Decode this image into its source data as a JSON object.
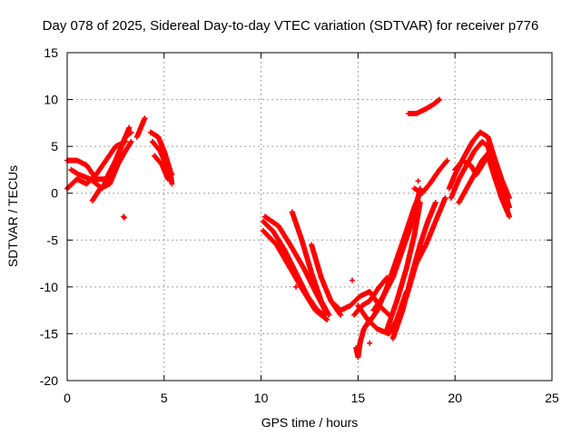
{
  "chart_data": {
    "type": "scatter",
    "title": "Day 078 of 2025, Sidereal Day-to-day VTEC variation (SDTVAR) for receiver p776",
    "xlabel": "GPS time / hours",
    "ylabel": "SDTVAR / TECUs",
    "xlim": [
      0,
      25
    ],
    "ylim": [
      -20,
      15
    ],
    "xticks": [
      0,
      5,
      10,
      15,
      20,
      25
    ],
    "yticks": [
      -20,
      -15,
      -10,
      -5,
      0,
      5,
      10,
      15
    ],
    "grid": true,
    "marker": "+",
    "color": "#ff0000",
    "series": [
      {
        "name": "SDTVAR",
        "traces": [
          [
            [
              0.0,
              0.5
            ],
            [
              0.5,
              1.5
            ],
            [
              1.0,
              1.0
            ],
            [
              1.5,
              2.0
            ],
            [
              2.0,
              3.5
            ],
            [
              2.5,
              5.0
            ],
            [
              3.0,
              5.5
            ]
          ],
          [
            [
              0.0,
              3.5
            ],
            [
              0.5,
              3.5
            ],
            [
              1.0,
              3.0
            ],
            [
              1.5,
              1.5
            ],
            [
              2.0,
              1.5
            ],
            [
              2.5,
              3.5
            ],
            [
              3.0,
              6.0
            ],
            [
              3.3,
              6.5
            ]
          ],
          [
            [
              0.2,
              2.5
            ],
            [
              0.6,
              2.0
            ],
            [
              1.2,
              1.5
            ],
            [
              1.8,
              0.5
            ],
            [
              2.3,
              2.5
            ],
            [
              2.8,
              5.0
            ],
            [
              3.2,
              7.0
            ]
          ],
          [
            [
              1.3,
              -0.8
            ],
            [
              1.7,
              0.5
            ],
            [
              2.2,
              1.0
            ],
            [
              2.6,
              3.0
            ],
            [
              3.0,
              4.5
            ],
            [
              3.3,
              5.5
            ]
          ],
          [
            [
              3.6,
              6.0
            ],
            [
              3.8,
              7.0
            ],
            [
              4.0,
              8.0
            ]
          ],
          [
            [
              4.3,
              6.5
            ],
            [
              4.7,
              6.0
            ],
            [
              5.0,
              4.5
            ],
            [
              5.3,
              2.5
            ],
            [
              5.4,
              1.0
            ]
          ],
          [
            [
              4.4,
              5.5
            ],
            [
              4.8,
              4.5
            ],
            [
              5.1,
              3.0
            ],
            [
              5.4,
              2.0
            ]
          ],
          [
            [
              4.5,
              4.0
            ],
            [
              4.9,
              3.0
            ],
            [
              5.2,
              1.5
            ]
          ],
          [
            [
              10.1,
              -3.0
            ],
            [
              10.6,
              -4.0
            ],
            [
              11.2,
              -6.0
            ],
            [
              11.8,
              -8.5
            ],
            [
              12.4,
              -11.0
            ],
            [
              12.9,
              -12.5
            ],
            [
              13.3,
              -13.0
            ]
          ],
          [
            [
              10.1,
              -4.0
            ],
            [
              10.8,
              -5.5
            ],
            [
              11.5,
              -8.0
            ],
            [
              12.2,
              -10.5
            ],
            [
              12.8,
              -12.5
            ],
            [
              13.4,
              -13.5
            ]
          ],
          [
            [
              10.2,
              -2.5
            ],
            [
              10.9,
              -3.5
            ],
            [
              11.5,
              -5.5
            ],
            [
              12.2,
              -8.0
            ],
            [
              12.8,
              -10.5
            ],
            [
              13.3,
              -12.5
            ]
          ],
          [
            [
              11.6,
              -2.0
            ],
            [
              12.1,
              -5.0
            ],
            [
              12.6,
              -8.5
            ],
            [
              13.1,
              -11.5
            ],
            [
              13.5,
              -13.0
            ]
          ],
          [
            [
              12.6,
              -5.5
            ],
            [
              13.1,
              -9.0
            ],
            [
              13.6,
              -11.5
            ],
            [
              14.1,
              -13.0
            ]
          ],
          [
            [
              13.6,
              -11.5
            ],
            [
              14.1,
              -12.5
            ],
            [
              14.6,
              -12.0
            ],
            [
              15.1,
              -11.0
            ],
            [
              15.6,
              -10.5
            ],
            [
              16.1,
              -12.0
            ],
            [
              16.6,
              -13.0
            ]
          ],
          [
            [
              14.8,
              -13.0
            ],
            [
              15.2,
              -12.0
            ],
            [
              15.6,
              -11.5
            ],
            [
              16.1,
              -10.0
            ],
            [
              16.5,
              -9.0
            ]
          ],
          [
            [
              14.9,
              -16.5
            ],
            [
              15.0,
              -17.5
            ],
            [
              15.1,
              -16.0
            ],
            [
              15.3,
              -14.5
            ],
            [
              15.6,
              -13.5
            ]
          ],
          [
            [
              15.0,
              -12.0
            ],
            [
              15.5,
              -13.5
            ],
            [
              16.0,
              -14.5
            ],
            [
              16.6,
              -15.0
            ],
            [
              17.0,
              -13.5
            ],
            [
              17.5,
              -10.5
            ]
          ],
          [
            [
              15.5,
              -14.0
            ],
            [
              16.0,
              -12.5
            ],
            [
              16.5,
              -10.0
            ],
            [
              17.0,
              -7.0
            ],
            [
              17.5,
              -4.0
            ],
            [
              17.9,
              -1.5
            ],
            [
              18.2,
              0.0
            ]
          ],
          [
            [
              15.8,
              -12.5
            ],
            [
              16.3,
              -11.0
            ],
            [
              16.8,
              -9.0
            ],
            [
              17.3,
              -6.0
            ],
            [
              17.8,
              -3.0
            ],
            [
              18.2,
              0.5
            ]
          ],
          [
            [
              16.5,
              -14.5
            ],
            [
              17.0,
              -11.5
            ],
            [
              17.5,
              -8.0
            ],
            [
              17.9,
              -4.5
            ],
            [
              18.2,
              -1.0
            ]
          ],
          [
            [
              16.8,
              -15.5
            ],
            [
              17.3,
              -12.5
            ],
            [
              17.8,
              -8.5
            ],
            [
              18.2,
              -5.5
            ],
            [
              18.6,
              -3.0
            ],
            [
              19.0,
              -1.0
            ]
          ],
          [
            [
              17.5,
              -11.0
            ],
            [
              18.0,
              -7.5
            ],
            [
              18.5,
              -5.5
            ],
            [
              19.0,
              -3.0
            ],
            [
              19.5,
              -0.5
            ]
          ],
          [
            [
              17.9,
              0.5
            ],
            [
              18.3,
              0.0
            ],
            [
              18.7,
              1.0
            ],
            [
              19.2,
              2.5
            ],
            [
              19.6,
              3.5
            ]
          ],
          [
            [
              17.6,
              8.5
            ],
            [
              18.0,
              8.5
            ],
            [
              18.5,
              9.0
            ],
            [
              18.9,
              9.5
            ],
            [
              19.2,
              10.0
            ]
          ],
          [
            [
              19.7,
              0.5
            ],
            [
              20.0,
              2.0
            ],
            [
              20.5,
              4.0
            ],
            [
              20.9,
              5.5
            ],
            [
              21.3,
              6.5
            ],
            [
              21.7,
              6.0
            ],
            [
              22.0,
              4.0
            ],
            [
              22.4,
              1.5
            ],
            [
              22.8,
              -0.5
            ]
          ],
          [
            [
              19.8,
              -0.5
            ],
            [
              20.2,
              1.5
            ],
            [
              20.6,
              3.0
            ],
            [
              21.0,
              4.5
            ],
            [
              21.4,
              5.5
            ],
            [
              21.7,
              5.0
            ],
            [
              22.0,
              2.5
            ],
            [
              22.4,
              0.0
            ],
            [
              22.8,
              -2.5
            ]
          ],
          [
            [
              20.0,
              2.5
            ],
            [
              20.4,
              3.5
            ],
            [
              20.8,
              3.0
            ],
            [
              21.1,
              2.0
            ],
            [
              21.4,
              3.0
            ],
            [
              21.7,
              4.0
            ],
            [
              22.0,
              2.0
            ],
            [
              22.4,
              -0.5
            ],
            [
              22.7,
              -2.0
            ]
          ],
          [
            [
              20.2,
              -1.0
            ],
            [
              20.6,
              0.5
            ],
            [
              21.0,
              2.0
            ],
            [
              21.4,
              3.5
            ],
            [
              21.8,
              4.5
            ],
            [
              22.1,
              3.0
            ],
            [
              22.5,
              0.5
            ],
            [
              22.8,
              -1.5
            ]
          ]
        ],
        "points": [
          [
            2.9,
            -2.5
          ],
          [
            2.95,
            -2.6
          ],
          [
            11.8,
            -10.0
          ],
          [
            14.7,
            -9.3
          ],
          [
            15.6,
            -16.0
          ],
          [
            18.1,
            1.3
          ]
        ]
      }
    ]
  }
}
